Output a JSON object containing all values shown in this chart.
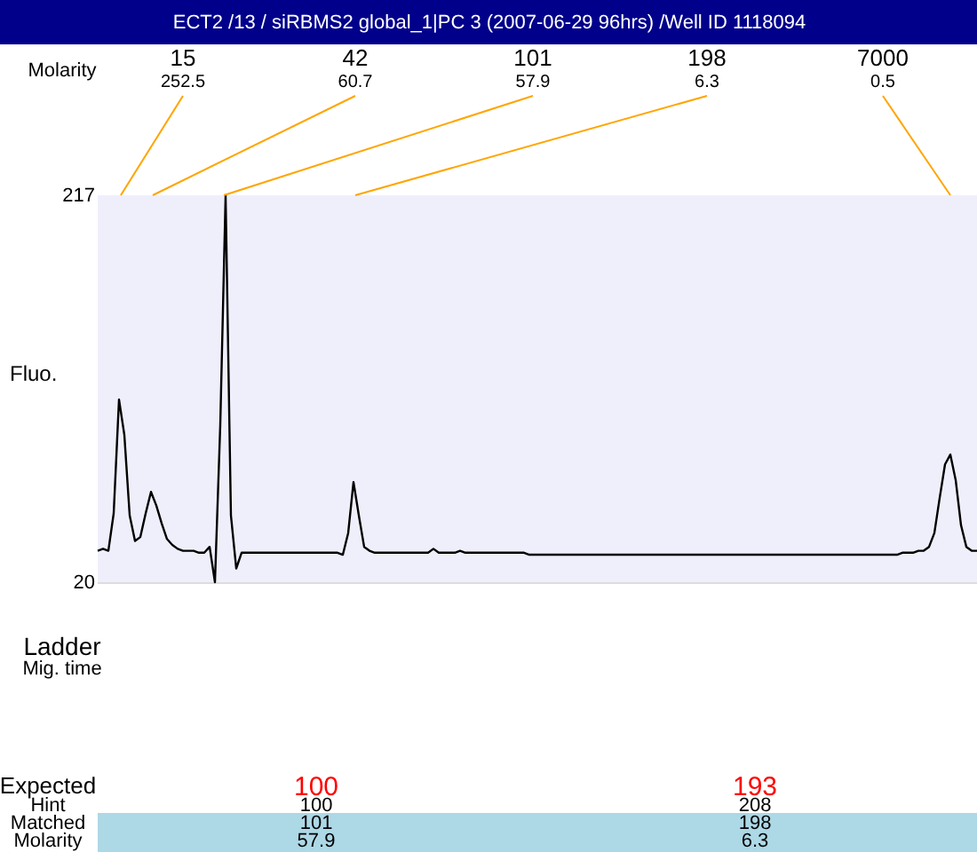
{
  "chart_data": {
    "type": "line",
    "title": "ECT2 /13 / siRBMS2 global_1|PC 3 (2007-06-29 96hrs) /Well ID 1118094",
    "ylabel": "Fluo.",
    "categories": [
      null,
      null,
      null,
      null,
      null,
      null,
      null,
      null,
      null,
      null,
      null,
      null,
      null,
      null,
      null,
      null,
      null,
      null,
      null,
      null,
      null,
      null,
      null,
      null,
      null,
      null,
      null,
      null,
      null,
      null,
      null,
      null,
      null,
      null,
      null,
      null,
      null,
      null,
      null,
      null,
      null,
      null,
      null,
      null,
      null,
      null,
      null,
      null,
      null,
      null,
      null,
      null,
      null,
      null,
      null,
      null,
      null,
      null,
      null,
      null,
      null,
      null,
      null,
      null,
      null,
      null,
      null,
      null,
      null,
      null,
      null,
      null,
      null,
      null,
      null,
      null,
      null,
      null,
      null,
      null,
      null,
      null,
      null,
      null,
      null,
      null,
      null,
      null,
      null,
      null,
      null,
      null,
      null,
      null,
      null,
      null,
      null,
      null,
      null,
      null,
      null,
      null,
      null,
      null,
      null,
      null,
      null,
      null,
      null,
      null,
      null,
      null,
      null,
      null,
      null,
      null,
      null,
      null,
      null,
      null,
      null,
      null,
      null,
      null,
      null,
      null,
      null,
      null,
      null,
      null,
      null,
      null,
      null,
      null,
      null,
      null,
      null,
      null,
      null,
      null,
      null,
      null,
      null,
      null,
      null,
      null,
      null,
      null,
      null,
      null,
      null,
      null,
      null,
      null,
      null,
      null,
      null,
      null,
      null,
      null,
      null,
      null,
      null,
      null,
      null,
      null
    ],
    "series": [
      {
        "color": "#000000",
        "values": [
          36,
          37,
          36,
          55,
          113,
          95,
          54,
          41,
          43,
          55,
          66,
          59,
          50,
          42,
          39,
          37,
          36,
          36,
          36,
          35,
          35,
          38,
          20,
          100,
          217,
          54,
          27,
          35,
          35,
          35,
          35,
          35,
          35,
          35,
          35,
          35,
          35,
          35,
          35,
          35,
          35,
          35,
          35,
          35,
          35,
          35,
          34,
          45,
          71,
          54,
          38,
          36,
          35,
          35,
          35,
          35,
          35,
          35,
          35,
          35,
          35,
          35,
          35,
          37,
          35,
          35,
          35,
          35,
          36,
          35,
          35,
          35,
          35,
          35,
          35,
          35,
          35,
          35,
          35,
          35,
          35,
          34,
          34,
          34,
          34,
          34,
          34,
          34,
          34,
          34,
          34,
          34,
          34,
          34,
          34,
          34,
          34,
          34,
          34,
          34,
          34,
          34,
          34,
          34,
          34,
          34,
          34,
          34,
          34,
          34,
          34,
          34,
          34,
          34,
          34,
          34,
          34,
          34,
          34,
          34,
          34,
          34,
          34,
          34,
          34,
          34,
          34,
          34,
          34,
          34,
          34,
          34,
          34,
          34,
          34,
          34,
          34,
          34,
          34,
          34,
          34,
          34,
          34,
          34,
          34,
          34,
          34,
          34,
          34,
          34,
          34,
          35,
          35,
          35,
          36,
          36,
          38,
          45,
          63,
          80,
          85,
          72,
          49,
          38,
          36,
          36
        ]
      }
    ],
    "ylim": [
      20,
      217
    ],
    "yticks": [
      20,
      217
    ],
    "tick_labels": "y",
    "annotations": [
      "15",
      "252.5",
      "42",
      "60.7",
      "101",
      "57.9",
      "198",
      "6.3",
      "7000",
      "0.5",
      "Molarity",
      "Ladder",
      "Mig. time",
      "Expected",
      "100",
      "193",
      "Hint",
      "100",
      "208",
      "Matched",
      "101",
      "198",
      "Molarity",
      "57.9",
      "6.3"
    ]
  }
}
